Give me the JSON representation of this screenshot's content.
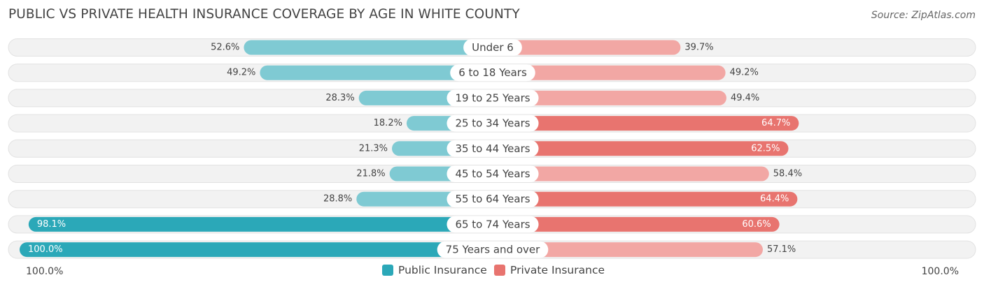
{
  "title": "PUBLIC VS PRIVATE HEALTH INSURANCE COVERAGE BY AGE IN WHITE COUNTY",
  "source": "Source: ZipAtlas.com",
  "colors": {
    "public_dark": "#2ba8b8",
    "public_light": "#7fcad3",
    "private_dark": "#e8746f",
    "private_light": "#f2a7a4",
    "track": "#f2f2f2"
  },
  "legend": {
    "public_label": "Public Insurance",
    "private_label": "Private Insurance"
  },
  "axis": {
    "left_label": "100.0%",
    "right_label": "100.0%"
  },
  "chart_data": {
    "type": "bar",
    "orientation": "horizontal-diverging",
    "title": "PUBLIC VS PRIVATE HEALTH INSURANCE COVERAGE BY AGE IN WHITE COUNTY",
    "categories": [
      "Under 6",
      "6 to 18 Years",
      "19 to 25 Years",
      "25 to 34 Years",
      "35 to 44 Years",
      "45 to 54 Years",
      "55 to 64 Years",
      "65 to 74 Years",
      "75 Years and over"
    ],
    "series": [
      {
        "name": "Public Insurance",
        "values": [
          52.6,
          49.2,
          28.3,
          18.2,
          21.3,
          21.8,
          28.8,
          98.1,
          100.0
        ],
        "labels": [
          "52.6%",
          "49.2%",
          "28.3%",
          "18.2%",
          "21.3%",
          "21.8%",
          "28.8%",
          "98.1%",
          "100.0%"
        ]
      },
      {
        "name": "Private Insurance",
        "values": [
          39.7,
          49.2,
          49.4,
          64.7,
          62.5,
          58.4,
          64.4,
          60.6,
          57.1
        ],
        "labels": [
          "39.7%",
          "49.2%",
          "49.4%",
          "64.7%",
          "62.5%",
          "58.4%",
          "64.4%",
          "60.6%",
          "57.1%"
        ]
      }
    ],
    "xlim": [
      -100,
      100
    ],
    "legend_position": "bottom-center"
  }
}
